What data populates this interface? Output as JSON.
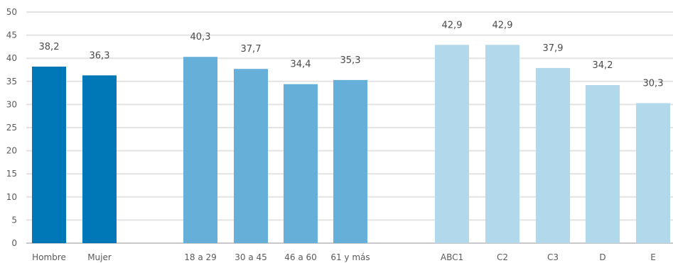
{
  "chart_data": {
    "type": "bar",
    "ylim": [
      0,
      50
    ],
    "y_ticks": [
      0,
      5,
      10,
      15,
      20,
      25,
      30,
      35,
      40,
      45,
      50
    ],
    "grid": true,
    "groups": [
      {
        "color": "#0077b6",
        "categories": [
          "Hombre",
          "Mujer"
        ],
        "values": [
          38.2,
          36.3
        ],
        "labels": [
          "38,2",
          "36,3"
        ]
      },
      {
        "color": "#65afd9",
        "categories": [
          "18 a 29",
          "30 a 45",
          "46 a 60",
          "61 y más"
        ],
        "values": [
          40.3,
          37.7,
          34.4,
          35.3
        ],
        "labels": [
          "40,3",
          "37,7",
          "34,4",
          "35,3"
        ]
      },
      {
        "color": "#b2d8ec",
        "categories": [
          "ABC1",
          "C2",
          "C3",
          "D",
          "E"
        ],
        "values": [
          42.9,
          42.9,
          37.9,
          34.2,
          30.3
        ],
        "labels": [
          "42,9",
          "42,9",
          "37,9",
          "34,2",
          "30,3"
        ]
      }
    ]
  }
}
